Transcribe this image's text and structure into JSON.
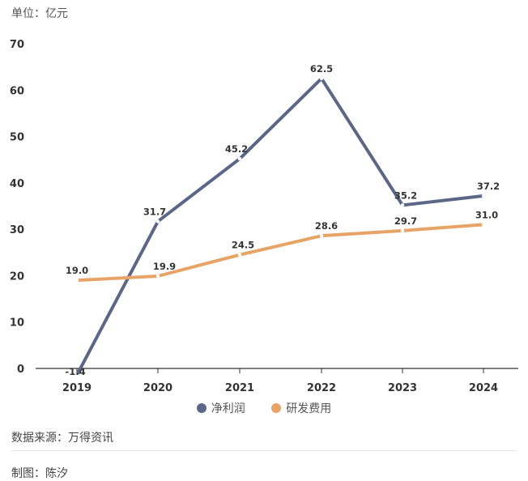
{
  "header": {
    "unit_label": "单位：亿元"
  },
  "chart_data": {
    "type": "line",
    "categories": [
      "2019",
      "2020",
      "2021",
      "2022",
      "2023",
      "2024"
    ],
    "ylim": [
      0,
      70
    ],
    "yticks": [
      0,
      10,
      20,
      30,
      40,
      50,
      60,
      70
    ],
    "grid": false,
    "legend_position": "bottom-center",
    "series": [
      {
        "name": "净利润",
        "values": [
          -1.4,
          31.7,
          45.2,
          62.5,
          35.2,
          37.2
        ],
        "labels": [
          "-1.4",
          "31.7",
          "45.2",
          "62.5",
          "35.2",
          "37.2"
        ],
        "color": "#5b6787"
      },
      {
        "name": "研发费用",
        "values": [
          19.0,
          19.9,
          24.5,
          28.6,
          29.7,
          31.0
        ],
        "labels": [
          "19.0",
          "19.9",
          "24.5",
          "28.6",
          "29.7",
          "31.0"
        ],
        "color": "#e8a466"
      }
    ]
  },
  "footer": {
    "source": "数据来源：万得资讯",
    "credit": "制图：陈汐"
  }
}
